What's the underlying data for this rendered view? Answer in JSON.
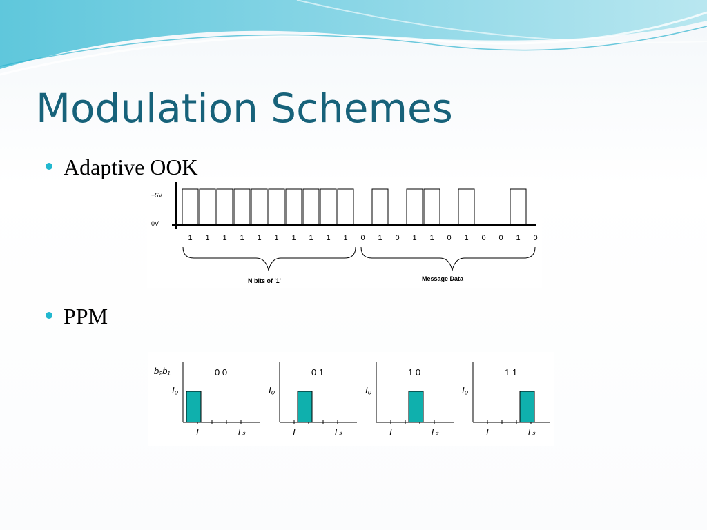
{
  "slide": {
    "title": "Modulation Schemes",
    "bullets": [
      {
        "label": "Adaptive OOK"
      },
      {
        "label": "PPM"
      }
    ]
  },
  "colors": {
    "title": "#17627a",
    "bullet": "#22b8cf",
    "pulse_fill": "#0fb0ad"
  },
  "ook_diagram": {
    "y_labels": [
      "+5V",
      "0V"
    ],
    "preamble_bits": [
      "1",
      "1",
      "1",
      "1",
      "1",
      "1",
      "1",
      "1",
      "1",
      "1"
    ],
    "message_bits": [
      "0",
      "1",
      "0",
      "1",
      "1",
      "0",
      "1",
      "0",
      "0",
      "1",
      "0"
    ],
    "preamble_label": "N bits of '1'",
    "message_label": "Message Data"
  },
  "ppm_diagram": {
    "y_axis_header": "b₂b₁",
    "panels": [
      {
        "code": "0 0",
        "slot": 0
      },
      {
        "code": "0 1",
        "slot": 1
      },
      {
        "code": "1 0",
        "slot": 2
      },
      {
        "code": "1 1",
        "slot": 3
      }
    ],
    "y_label": "I₀",
    "x_label_t": "T",
    "x_label_ts": "Tₛ"
  }
}
